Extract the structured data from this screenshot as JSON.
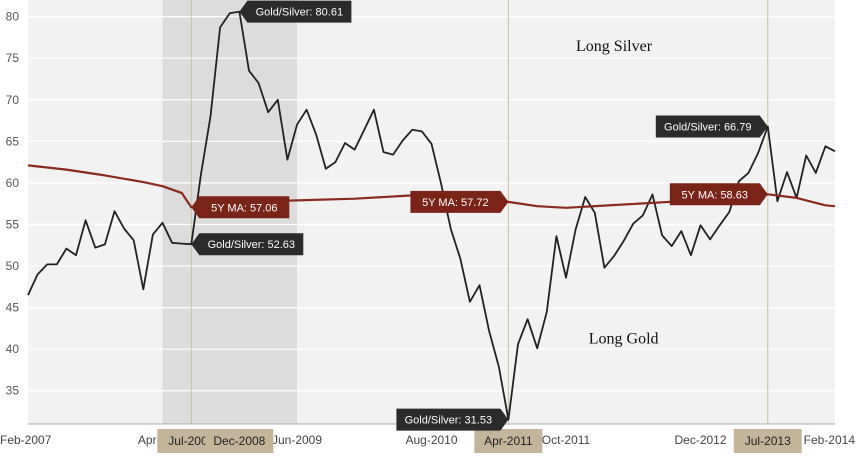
{
  "chart_data": {
    "type": "line",
    "y_ticks": [
      35,
      40,
      45,
      50,
      55,
      60,
      65,
      70,
      75,
      80
    ],
    "ylim": [
      31,
      82
    ],
    "x_tick_labels": [
      {
        "label": "Feb-2007",
        "date": "2007-02"
      },
      {
        "label": "Apr-2008",
        "date": "2008-04"
      },
      {
        "label": "Jun-2009",
        "date": "2009-06"
      },
      {
        "label": "Aug-2010",
        "date": "2010-08"
      },
      {
        "label": "Oct-2011",
        "date": "2011-10"
      },
      {
        "label": "Dec-2012",
        "date": "2012-12"
      },
      {
        "label": "Feb-2014",
        "date": "2014-02"
      }
    ],
    "highlight_labels": [
      {
        "label": "Jul-2008",
        "date": "2008-07"
      },
      {
        "label": "Dec-2008",
        "date": "2008-12"
      },
      {
        "label": "Apr-2011",
        "date": "2011-04"
      },
      {
        "label": "Jul-2013",
        "date": "2013-07"
      }
    ],
    "shaded_period": [
      "2008-04",
      "2009-06"
    ],
    "vertical_lines": [
      "2008-07",
      "2011-04",
      "2013-07"
    ],
    "series": [
      {
        "color": "#222222",
        "points": [
          [
            "2007-02",
            46.5
          ],
          [
            "2007-03",
            49.0
          ],
          [
            "2007-04",
            50.2
          ],
          [
            "2007-05",
            50.2
          ],
          [
            "2007-06",
            52.1
          ],
          [
            "2007-07",
            51.3
          ],
          [
            "2007-08",
            55.5
          ],
          [
            "2007-09",
            52.2
          ],
          [
            "2007-10",
            52.6
          ],
          [
            "2007-11",
            56.6
          ],
          [
            "2007-12",
            54.5
          ],
          [
            "2008-01",
            53.1
          ],
          [
            "2008-02",
            47.2
          ],
          [
            "2008-03",
            53.8
          ],
          [
            "2008-04",
            55.2
          ],
          [
            "2008-05",
            52.8
          ],
          [
            "2008-06",
            52.7
          ],
          [
            "2008-07",
            52.63
          ],
          [
            "2008-08",
            61.0
          ],
          [
            "2008-09",
            68.0
          ],
          [
            "2008-10",
            78.7
          ],
          [
            "2008-11",
            80.4
          ],
          [
            "2008-12",
            80.61
          ],
          [
            "2009-01",
            73.5
          ],
          [
            "2009-02",
            72.0
          ],
          [
            "2009-03",
            68.5
          ],
          [
            "2009-04",
            70.0
          ],
          [
            "2009-05",
            62.8
          ],
          [
            "2009-06",
            67.0
          ],
          [
            "2009-07",
            68.8
          ],
          [
            "2009-08",
            65.8
          ],
          [
            "2009-09",
            61.7
          ],
          [
            "2009-10",
            62.5
          ],
          [
            "2009-11",
            64.8
          ],
          [
            "2009-12",
            64.0
          ],
          [
            "2010-01",
            66.4
          ],
          [
            "2010-02",
            68.8
          ],
          [
            "2010-03",
            63.7
          ],
          [
            "2010-04",
            63.4
          ],
          [
            "2010-05",
            65.1
          ],
          [
            "2010-06",
            66.4
          ],
          [
            "2010-07",
            66.2
          ],
          [
            "2010-08",
            64.7
          ],
          [
            "2010-09",
            59.9
          ],
          [
            "2010-10",
            54.5
          ],
          [
            "2010-11",
            50.9
          ],
          [
            "2010-12",
            45.7
          ],
          [
            "2011-01",
            47.7
          ],
          [
            "2011-02",
            42.2
          ],
          [
            "2011-03",
            37.9
          ],
          [
            "2011-04",
            31.53
          ],
          [
            "2011-05",
            40.6
          ],
          [
            "2011-06",
            43.6
          ],
          [
            "2011-07",
            40.1
          ],
          [
            "2011-08",
            44.5
          ],
          [
            "2011-09",
            53.6
          ],
          [
            "2011-10",
            48.6
          ],
          [
            "2011-11",
            54.4
          ],
          [
            "2011-12",
            58.3
          ],
          [
            "2012-01",
            56.4
          ],
          [
            "2012-02",
            49.8
          ],
          [
            "2012-03",
            51.2
          ],
          [
            "2012-04",
            53.0
          ],
          [
            "2012-05",
            55.1
          ],
          [
            "2012-06",
            56.1
          ],
          [
            "2012-07",
            58.6
          ],
          [
            "2012-08",
            53.7
          ],
          [
            "2012-09",
            52.4
          ],
          [
            "2012-10",
            54.2
          ],
          [
            "2012-11",
            51.3
          ],
          [
            "2012-12",
            54.9
          ],
          [
            "2013-01",
            53.2
          ],
          [
            "2013-02",
            54.9
          ],
          [
            "2013-03",
            56.5
          ],
          [
            "2013-04",
            60.2
          ],
          [
            "2013-05",
            61.2
          ],
          [
            "2013-06",
            63.6
          ],
          [
            "2013-07",
            66.79
          ],
          [
            "2013-08",
            57.8
          ],
          [
            "2013-09",
            61.3
          ],
          [
            "2013-10",
            58.2
          ],
          [
            "2013-11",
            63.3
          ],
          [
            "2013-12",
            61.2
          ],
          [
            "2014-01",
            64.4
          ],
          [
            "2014-02",
            63.8
          ]
        ]
      },
      {
        "name": "5Y MA",
        "color": "#8b2a1c",
        "points": [
          [
            "2007-02",
            62.1
          ],
          [
            "2007-06",
            61.6
          ],
          [
            "2007-10",
            60.9
          ],
          [
            "2008-02",
            60.1
          ],
          [
            "2008-04",
            59.6
          ],
          [
            "2008-06",
            58.8
          ],
          [
            "2008-07",
            57.06
          ],
          [
            "2008-10",
            57.4
          ],
          [
            "2009-01",
            57.7
          ],
          [
            "2009-06",
            57.9
          ],
          [
            "2009-12",
            58.1
          ],
          [
            "2010-06",
            58.5
          ],
          [
            "2011-01",
            58.7
          ],
          [
            "2011-04",
            57.72
          ],
          [
            "2011-07",
            57.2
          ],
          [
            "2011-10",
            57.0
          ],
          [
            "2012-04",
            57.4
          ],
          [
            "2012-10",
            57.8
          ],
          [
            "2013-03",
            58.2
          ],
          [
            "2013-07",
            58.63
          ],
          [
            "2013-10",
            58.2
          ],
          [
            "2014-01",
            57.3
          ],
          [
            "2014-02",
            57.2
          ]
        ]
      }
    ],
    "callouts": [
      {
        "text": "Gold/Silver: 80.61",
        "date": "2008-12",
        "value": 80.61,
        "style": "dark",
        "side": "right"
      },
      {
        "text": "Gold/Silver: 52.63",
        "date": "2008-07",
        "value": 52.63,
        "style": "dark",
        "side": "right"
      },
      {
        "text": "Gold/Silver: 31.53",
        "date": "2011-04",
        "value": 31.53,
        "style": "dark",
        "side": "left"
      },
      {
        "text": "Gold/Silver: 66.79",
        "date": "2013-07",
        "value": 66.79,
        "style": "dark",
        "side": "left"
      },
      {
        "text": "5Y MA: 57.06",
        "date": "2008-07",
        "value": 57.06,
        "style": "red",
        "side": "right"
      },
      {
        "text": "5Y MA: 57.72",
        "date": "2011-04",
        "value": 57.72,
        "style": "red",
        "side": "left"
      },
      {
        "text": "5Y MA: 58.63",
        "date": "2013-07",
        "value": 58.63,
        "style": "red",
        "side": "left"
      }
    ],
    "annotations": [
      {
        "text": "Long Silver",
        "date": "2012-03",
        "value": 76.6
      },
      {
        "text": "Long Gold",
        "date": "2012-04",
        "value": 41.4
      }
    ],
    "colors": {
      "plot_background": "#f2f2f2",
      "shaded_period": "#dcdcdc",
      "grid": "#ffffff",
      "vline": "#c9c2a6",
      "highlight_label_bg": "#c4b59a",
      "callout_dark": "#2b2b2b",
      "callout_red": "#7a2318"
    }
  }
}
